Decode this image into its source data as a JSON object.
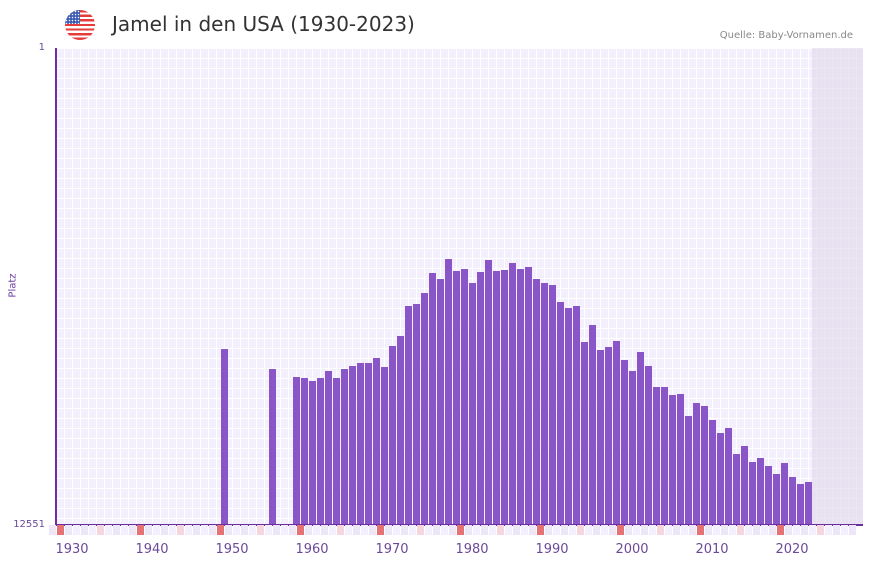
{
  "header": {
    "flag_icon": "us-flag-icon",
    "title": "Jamel in den USA (1930-2023)",
    "source": "Quelle: Baby-Vornamen.de"
  },
  "colors": {
    "bar": "#8a55c6",
    "axis": "#6b2fa0",
    "grid_bg": "#f3effc",
    "decade_marker": "#e57373",
    "half_decade_marker": "#f6d6dc",
    "future_shade": "#e2dced"
  },
  "chart_data": {
    "type": "bar",
    "title": "Jamel in den USA (1930-2023)",
    "xlabel": "",
    "ylabel": "Platz",
    "y_axis_inverted": true,
    "ylim": [
      12551,
      1
    ],
    "y_tick_labels": [
      "1",
      "12551"
    ],
    "x_tick_labels": [
      "1930",
      "1940",
      "1950",
      "1960",
      "1970",
      "1980",
      "1990",
      "2000",
      "2010",
      "2020"
    ],
    "xlim": [
      1928,
      2028
    ],
    "grid": true,
    "legend": null,
    "note": "values are bar heights as fraction of axis (0 = rank 12551, 1 = rank 1), read from pixels",
    "categories": [
      1949,
      1955,
      1958,
      1959,
      1960,
      1961,
      1962,
      1963,
      1964,
      1965,
      1966,
      1967,
      1968,
      1969,
      1970,
      1971,
      1972,
      1973,
      1974,
      1975,
      1976,
      1977,
      1978,
      1979,
      1980,
      1981,
      1982,
      1983,
      1984,
      1985,
      1986,
      1987,
      1988,
      1989,
      1990,
      1991,
      1992,
      1993,
      1994,
      1995,
      1996,
      1997,
      1998,
      1999,
      2000,
      2001,
      2002,
      2003,
      2004,
      2005,
      2006,
      2007,
      2008,
      2009,
      2010,
      2011,
      2012,
      2013,
      2014,
      2015,
      2016,
      2017,
      2018,
      2019,
      2020,
      2021,
      2022
    ],
    "values": [
      0.37,
      0.327,
      0.31,
      0.308,
      0.302,
      0.308,
      0.323,
      0.308,
      0.327,
      0.333,
      0.34,
      0.34,
      0.35,
      0.331,
      0.375,
      0.396,
      0.459,
      0.463,
      0.486,
      0.528,
      0.516,
      0.558,
      0.533,
      0.537,
      0.507,
      0.53,
      0.556,
      0.532,
      0.535,
      0.549,
      0.537,
      0.541,
      0.516,
      0.507,
      0.503,
      0.468,
      0.455,
      0.459,
      0.384,
      0.419,
      0.367,
      0.373,
      0.386,
      0.346,
      0.323,
      0.363,
      0.333,
      0.289,
      0.289,
      0.273,
      0.275,
      0.229,
      0.256,
      0.249,
      0.22,
      0.193,
      0.203,
      0.149,
      0.166,
      0.132,
      0.141,
      0.124,
      0.107,
      0.13,
      0.1,
      0.086,
      0.09
    ]
  },
  "axis": {
    "y_top": "1",
    "y_bottom": "12551",
    "y_label": "Platz"
  }
}
